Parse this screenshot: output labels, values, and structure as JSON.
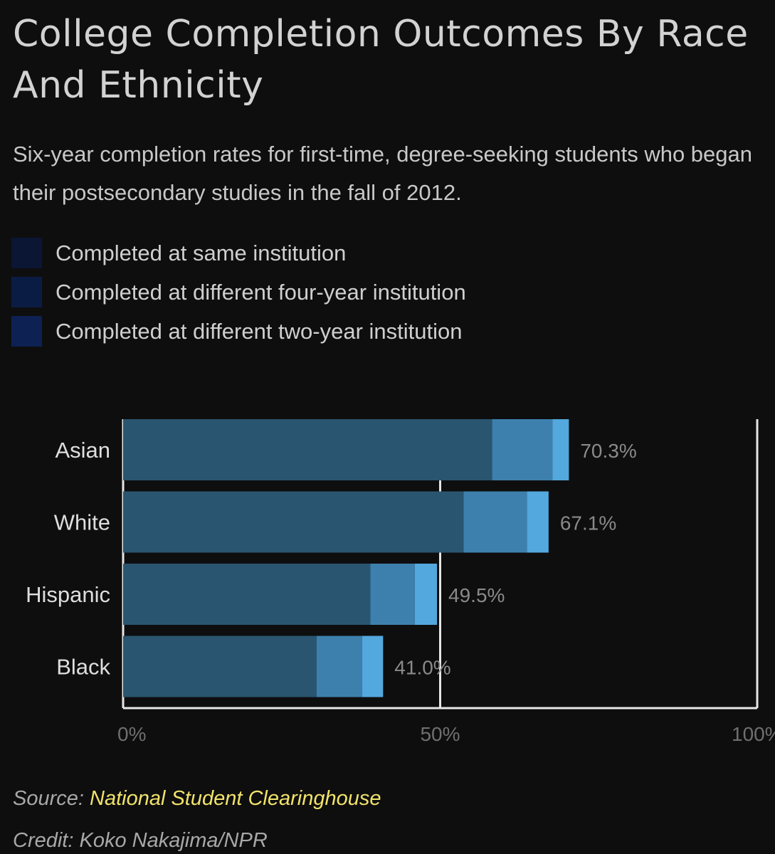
{
  "header": {
    "title": "College Completion Outcomes By Race And Ethnicity",
    "subtitle": "Six-year completion rates for first-time, degree-seeking students who began their postsecondary studies in the fall of 2012."
  },
  "legend": [
    {
      "label": "Completed at same institution",
      "color": "#0b1634"
    },
    {
      "label": "Completed at different four-year institution",
      "color": "#0b1c44"
    },
    {
      "label": "Completed at different two-year institution",
      "color": "#0d2152"
    }
  ],
  "chart_data": {
    "type": "bar",
    "orientation": "horizontal",
    "stacked": true,
    "categories": [
      "Asian",
      "White",
      "Hispanic",
      "Black"
    ],
    "series": [
      {
        "name": "Completed at same institution",
        "values": [
          58.2,
          53.7,
          39.0,
          30.5
        ],
        "color": "#2a5570"
      },
      {
        "name": "Completed at different four-year institution",
        "values": [
          9.5,
          10.0,
          7.0,
          7.2
        ],
        "color": "#3d80ad"
      },
      {
        "name": "Completed at different two-year institution",
        "values": [
          2.6,
          3.4,
          3.5,
          3.3
        ],
        "color": "#53a8de"
      }
    ],
    "totals": [
      70.3,
      67.1,
      49.5,
      41.0
    ],
    "total_labels": [
      "70.3%",
      "67.1%",
      "49.5%",
      "41.0%"
    ],
    "xticks": [
      0,
      50,
      100
    ],
    "xtick_labels": [
      "0%",
      "50%",
      "100%"
    ],
    "xlim": [
      0,
      100
    ],
    "grid": true
  },
  "footer": {
    "source_prefix": "Source: ",
    "source_name": "National Student Clearinghouse",
    "credit": "Credit: Koko Nakajima/NPR"
  }
}
